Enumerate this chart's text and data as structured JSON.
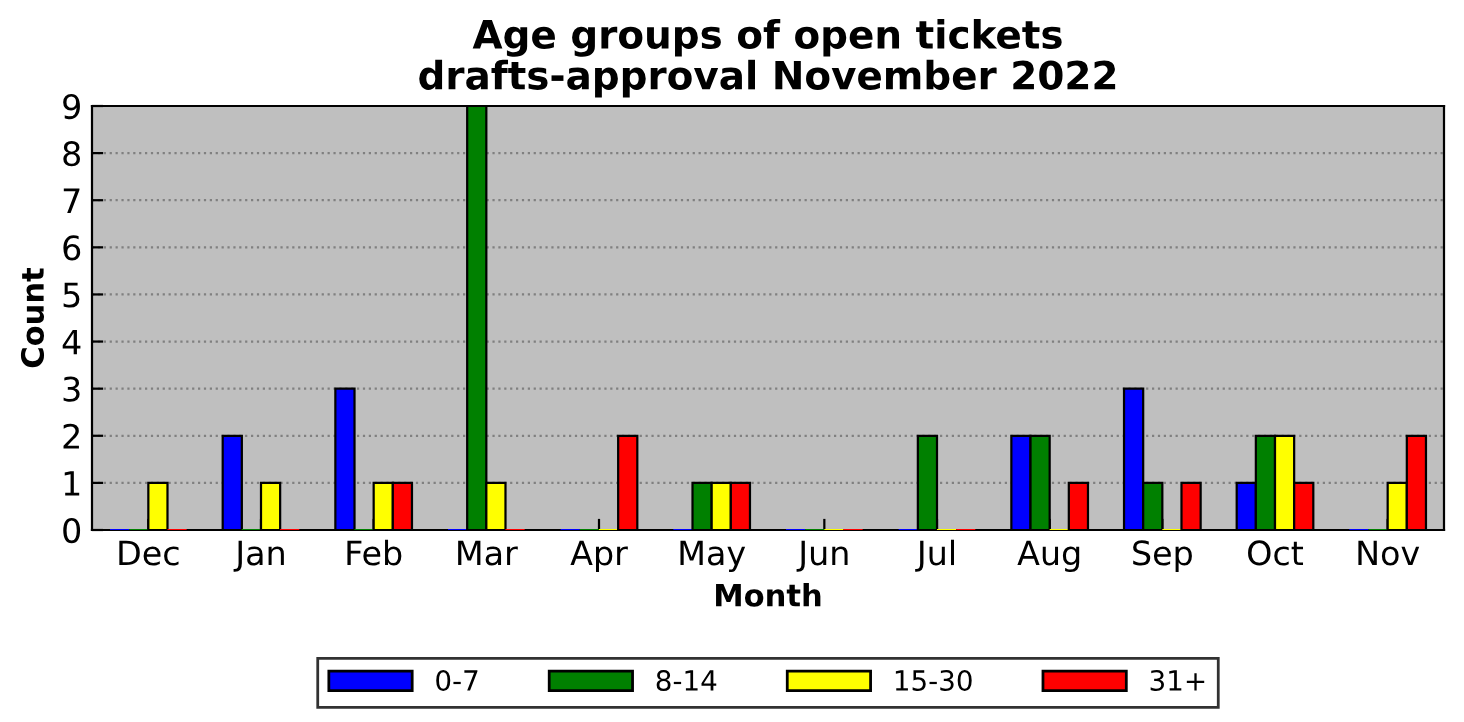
{
  "chart_data": {
    "type": "bar",
    "title": "Age groups of open tickets\ndrafts-approval November 2022",
    "xlabel": "Month",
    "ylabel": "Count",
    "categories": [
      "Dec",
      "Jan",
      "Feb",
      "Mar",
      "Apr",
      "May",
      "Jun",
      "Jul",
      "Aug",
      "Sep",
      "Oct",
      "Nov"
    ],
    "series": [
      {
        "name": "0-7",
        "color": "#0000ff",
        "values": [
          0,
          2,
          3,
          0,
          0,
          0,
          0,
          0,
          2,
          3,
          1,
          0
        ]
      },
      {
        "name": "8-14",
        "color": "#008000",
        "values": [
          0,
          0,
          0,
          9,
          0,
          1,
          0,
          2,
          2,
          1,
          2,
          0
        ]
      },
      {
        "name": "15-30",
        "color": "#ffff00",
        "values": [
          1,
          1,
          1,
          1,
          0,
          1,
          0,
          0,
          0,
          0,
          2,
          1
        ]
      },
      {
        "name": "31+",
        "color": "#ff0000",
        "values": [
          0,
          0,
          1,
          0,
          2,
          1,
          0,
          0,
          1,
          1,
          1,
          2
        ]
      }
    ],
    "ylim": [
      0,
      9
    ],
    "yticks": [
      0,
      1,
      2,
      3,
      4,
      5,
      6,
      7,
      8,
      9
    ],
    "grid": "y",
    "legend": "bottom"
  }
}
